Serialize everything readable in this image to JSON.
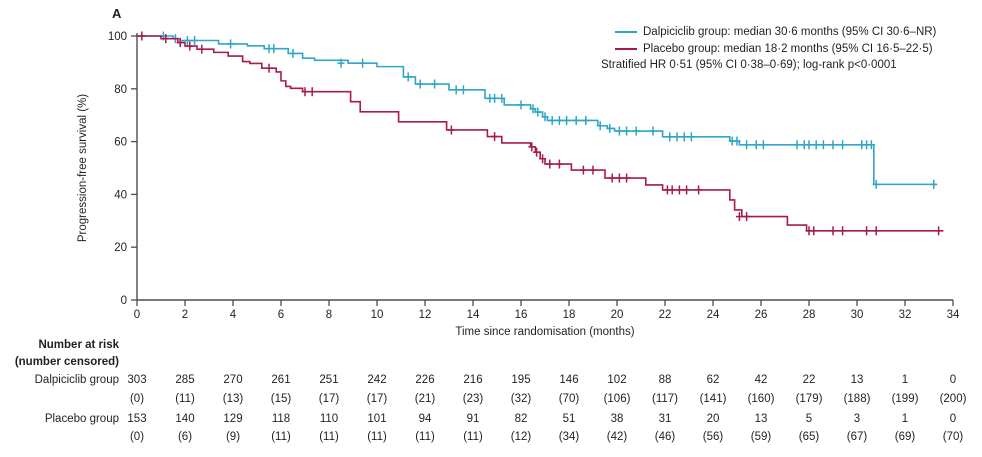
{
  "panel_label": "A",
  "legend": {
    "entries": [
      {
        "name": "Dalpiciclib group",
        "label": "Dalpiciclib group: median 30·6 months (95% CI 30·6–NR)",
        "color": "#2fa5c7"
      },
      {
        "name": "Placebo group",
        "label": "Placebo group: median 18·2 months (95% CI 16·5–22·5)",
        "color": "#a81a4f"
      }
    ],
    "note": "Stratified HR 0·51 (95% CI 0·38–0·69); log-rank p<0·0001"
  },
  "chart_data": {
    "type": "line",
    "subtype": "kaplan-meier-step",
    "title": "",
    "xlabel": "Time since randomisation (months)",
    "ylabel": "Progression-free survival (%)",
    "xlim": [
      0,
      34
    ],
    "ylim": [
      0,
      100
    ],
    "xticks": [
      0,
      2,
      4,
      6,
      8,
      10,
      12,
      14,
      16,
      18,
      20,
      22,
      24,
      26,
      28,
      30,
      32,
      34
    ],
    "yticks": [
      0,
      20,
      40,
      60,
      80,
      100
    ],
    "grid": false,
    "legend_position": "top-right",
    "series": [
      {
        "name": "Dalpiciclib group",
        "color": "#2fa5c7",
        "median": "30·6 months",
        "ci_95": "30·6–NR",
        "steps": [
          [
            0,
            100
          ],
          [
            1.5,
            99.0
          ],
          [
            1.8,
            98.3
          ],
          [
            3.4,
            97.0
          ],
          [
            4.6,
            96.3
          ],
          [
            5.3,
            95.2
          ],
          [
            6.3,
            93.4
          ],
          [
            6.9,
            91.6
          ],
          [
            7.4,
            90.8
          ],
          [
            8.8,
            89.7
          ],
          [
            10.0,
            88.4
          ],
          [
            11.1,
            84.5
          ],
          [
            11.6,
            81.8
          ],
          [
            13.0,
            79.6
          ],
          [
            14.5,
            76.4
          ],
          [
            15.3,
            73.9
          ],
          [
            16.4,
            72.4
          ],
          [
            16.6,
            71.2
          ],
          [
            16.9,
            69.4
          ],
          [
            17.1,
            68.0
          ],
          [
            19.2,
            66.0
          ],
          [
            19.6,
            65.0
          ],
          [
            19.9,
            64.0
          ],
          [
            21.9,
            61.8
          ],
          [
            24.7,
            60.2
          ],
          [
            25.1,
            58.8
          ],
          [
            30.7,
            43.8
          ],
          [
            33.3,
            43.8
          ]
        ],
        "censors": [
          [
            1.1,
            100
          ],
          [
            1.6,
            99.0
          ],
          [
            2.1,
            98.3
          ],
          [
            2.4,
            98.3
          ],
          [
            3.9,
            97.0
          ],
          [
            5.5,
            95.2
          ],
          [
            5.7,
            95.2
          ],
          [
            6.5,
            93.4
          ],
          [
            8.5,
            89.7
          ],
          [
            9.4,
            89.7
          ],
          [
            11.3,
            84.5
          ],
          [
            11.8,
            81.8
          ],
          [
            12.4,
            81.8
          ],
          [
            13.3,
            79.6
          ],
          [
            13.6,
            79.6
          ],
          [
            14.7,
            76.4
          ],
          [
            14.9,
            76.4
          ],
          [
            15.2,
            76.4
          ],
          [
            16.0,
            73.9
          ],
          [
            16.5,
            72.4
          ],
          [
            16.7,
            71.2
          ],
          [
            17.0,
            69.4
          ],
          [
            17.3,
            68.0
          ],
          [
            17.6,
            68.0
          ],
          [
            17.9,
            68.0
          ],
          [
            18.3,
            68.0
          ],
          [
            18.7,
            68.0
          ],
          [
            19.3,
            66.0
          ],
          [
            19.7,
            65.0
          ],
          [
            20.1,
            64.0
          ],
          [
            20.4,
            64.0
          ],
          [
            20.8,
            64.0
          ],
          [
            21.5,
            64.0
          ],
          [
            22.2,
            61.8
          ],
          [
            22.5,
            61.8
          ],
          [
            22.8,
            61.8
          ],
          [
            23.1,
            61.8
          ],
          [
            24.8,
            60.2
          ],
          [
            25.0,
            60.2
          ],
          [
            25.4,
            58.8
          ],
          [
            25.8,
            58.8
          ],
          [
            26.1,
            58.8
          ],
          [
            27.5,
            58.8
          ],
          [
            27.8,
            58.8
          ],
          [
            28.0,
            58.8
          ],
          [
            28.3,
            58.8
          ],
          [
            28.6,
            58.8
          ],
          [
            29.0,
            58.8
          ],
          [
            29.4,
            58.8
          ],
          [
            30.2,
            58.8
          ],
          [
            30.4,
            58.8
          ],
          [
            30.6,
            58.8
          ],
          [
            30.8,
            43.8
          ],
          [
            33.2,
            43.8
          ]
        ]
      },
      {
        "name": "Placebo group",
        "color": "#a81a4f",
        "median": "18·2 months",
        "ci_95": "16·5–22·5",
        "steps": [
          [
            0,
            100
          ],
          [
            1.0,
            99.0
          ],
          [
            1.7,
            97.5
          ],
          [
            2.0,
            96.2
          ],
          [
            2.5,
            95.0
          ],
          [
            3.2,
            93.8
          ],
          [
            3.8,
            92.4
          ],
          [
            4.4,
            90.3
          ],
          [
            4.7,
            89.6
          ],
          [
            5.2,
            87.8
          ],
          [
            5.8,
            86.4
          ],
          [
            6.0,
            83.0
          ],
          [
            6.2,
            80.9
          ],
          [
            6.4,
            80.2
          ],
          [
            6.9,
            78.9
          ],
          [
            8.9,
            75.1
          ],
          [
            9.3,
            71.3
          ],
          [
            10.9,
            67.5
          ],
          [
            12.9,
            64.4
          ],
          [
            14.6,
            61.9
          ],
          [
            15.2,
            59.5
          ],
          [
            16.4,
            58.0
          ],
          [
            16.6,
            56.0
          ],
          [
            16.8,
            53.5
          ],
          [
            17.0,
            51.5
          ],
          [
            18.1,
            49.2
          ],
          [
            19.5,
            46.2
          ],
          [
            21.2,
            43.6
          ],
          [
            21.9,
            41.7
          ],
          [
            24.7,
            37.9
          ],
          [
            24.9,
            34.1
          ],
          [
            25.2,
            31.6
          ],
          [
            27.1,
            28.4
          ],
          [
            27.9,
            26.2
          ],
          [
            33.6,
            26.2
          ]
        ],
        "censors": [
          [
            0.2,
            100
          ],
          [
            1.2,
            99.0
          ],
          [
            1.8,
            97.5
          ],
          [
            2.2,
            96.2
          ],
          [
            2.7,
            95.0
          ],
          [
            5.5,
            87.8
          ],
          [
            7.0,
            78.9
          ],
          [
            7.3,
            78.9
          ],
          [
            13.1,
            64.4
          ],
          [
            14.9,
            61.9
          ],
          [
            16.45,
            58.0
          ],
          [
            16.65,
            56.0
          ],
          [
            16.9,
            53.5
          ],
          [
            17.2,
            51.5
          ],
          [
            17.6,
            51.5
          ],
          [
            18.6,
            49.2
          ],
          [
            19.0,
            49.2
          ],
          [
            19.8,
            46.2
          ],
          [
            20.1,
            46.2
          ],
          [
            20.4,
            46.2
          ],
          [
            22.1,
            41.7
          ],
          [
            22.3,
            41.7
          ],
          [
            22.6,
            41.7
          ],
          [
            22.9,
            41.7
          ],
          [
            23.4,
            41.7
          ],
          [
            25.1,
            31.6
          ],
          [
            25.4,
            31.6
          ],
          [
            28.0,
            26.2
          ],
          [
            28.2,
            26.2
          ],
          [
            29.0,
            26.2
          ],
          [
            29.4,
            26.2
          ],
          [
            30.4,
            26.2
          ],
          [
            30.8,
            26.2
          ],
          [
            33.4,
            26.2
          ]
        ]
      }
    ]
  },
  "risk_table": {
    "title": "Number at risk",
    "subtitle": "(number censored)",
    "months": [
      0,
      2,
      4,
      6,
      8,
      10,
      12,
      14,
      16,
      18,
      20,
      22,
      24,
      26,
      28,
      30,
      32,
      34
    ],
    "rows": [
      {
        "label": "Dalpiciclib group",
        "at_risk": [
          303,
          285,
          270,
          261,
          251,
          242,
          226,
          216,
          195,
          146,
          102,
          88,
          62,
          42,
          22,
          13,
          1,
          0
        ],
        "censored": [
          0,
          11,
          13,
          15,
          17,
          17,
          21,
          23,
          32,
          70,
          106,
          117,
          141,
          160,
          179,
          188,
          199,
          200
        ]
      },
      {
        "label": "Placebo group",
        "at_risk": [
          153,
          140,
          129,
          118,
          110,
          101,
          94,
          91,
          82,
          51,
          38,
          31,
          20,
          13,
          5,
          3,
          1,
          0
        ],
        "censored": [
          0,
          6,
          9,
          11,
          11,
          11,
          11,
          11,
          12,
          34,
          42,
          46,
          56,
          59,
          65,
          67,
          69,
          70
        ]
      }
    ]
  },
  "style_colors": {
    "axis": "#4d4d4d",
    "text": "#231f20"
  }
}
